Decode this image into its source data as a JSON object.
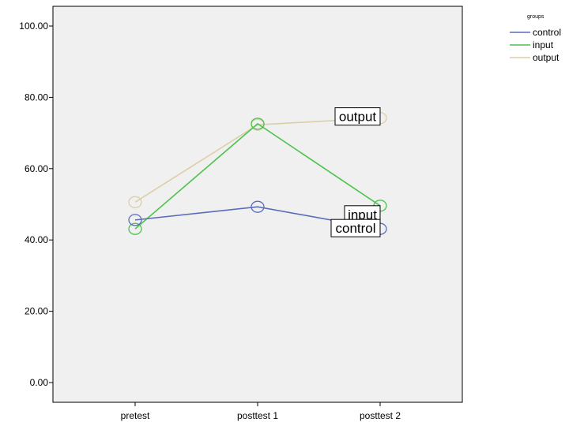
{
  "chart_data": {
    "type": "line",
    "categories": [
      "pretest",
      "posttest 1",
      "posttest 2"
    ],
    "ylim": [
      0,
      100
    ],
    "yticks": [
      "0.00",
      "20.00",
      "40.00",
      "60.00",
      "80.00",
      "100.00"
    ],
    "ytick_values": [
      0,
      20,
      40,
      60,
      80,
      100
    ],
    "grid": false,
    "legend": {
      "title": "groups",
      "placement": "top-right"
    },
    "series": [
      {
        "name": "control",
        "values": [
          45.6,
          49.3,
          43.1
        ],
        "color": "#5b6db8"
      },
      {
        "name": "input",
        "values": [
          43.1,
          72.6,
          49.6
        ],
        "color": "#4cc24f"
      },
      {
        "name": "output",
        "values": [
          50.6,
          72.3,
          74.2
        ],
        "color": "#dccfa8"
      }
    ],
    "end_labels": [
      "output",
      "input",
      "control"
    ],
    "plot_background": "#f0f0f0"
  }
}
